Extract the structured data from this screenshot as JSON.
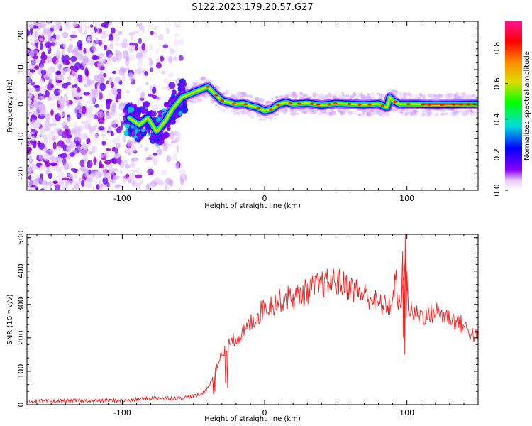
{
  "title": "S122.2023.179.20.57.G27",
  "chart_data": [
    {
      "type": "heatmap",
      "xlabel": "Height of straight line (km)",
      "ylabel": "Frequency (Hz)",
      "xlim": [
        -167,
        150
      ],
      "ylim": [
        -25,
        24
      ],
      "xticks": [
        -100,
        0,
        100
      ],
      "yticks": [
        -20,
        -10,
        0,
        10,
        20
      ],
      "colorbar": {
        "label": "Normalized spectral amplitude",
        "range": [
          0.0,
          0.95
        ],
        "ticks": [
          0.0,
          0.2,
          0.4,
          0.6,
          0.8
        ],
        "colors": [
          "#ffffff",
          "#e8c8ff",
          "#8800ff",
          "#0000ff",
          "#00dddd",
          "#00ff00",
          "#dddd00",
          "#ff8800",
          "#ff0000",
          "#ff1493"
        ]
      },
      "ridge_trace": {
        "x": [
          -95,
          -88,
          -82,
          -76,
          -70,
          -64,
          -58,
          -52,
          -46,
          -40,
          -35,
          -30,
          -25,
          -20,
          -15,
          -10,
          -5,
          0,
          5,
          10,
          15,
          20,
          30,
          40,
          50,
          60,
          70,
          80,
          86,
          88,
          90,
          95,
          105,
          120,
          135,
          150
        ],
        "y": [
          -4,
          -6,
          -4,
          -8,
          -5,
          -1,
          2,
          3,
          4,
          5,
          3,
          1,
          0.5,
          0,
          0.2,
          -0.5,
          -1,
          -2,
          -1.5,
          0,
          0.5,
          0,
          0.3,
          -0.3,
          0.2,
          0,
          -0.2,
          0.1,
          -1,
          2,
          1,
          0,
          0,
          -0.2,
          -0.1,
          0
        ]
      }
    },
    {
      "type": "line",
      "xlabel": "Height of straight line (km)",
      "ylabel": "SNR (10 * v/v)",
      "xlim": [
        -167,
        150
      ],
      "ylim": [
        0,
        510
      ],
      "xticks": [
        -100,
        0,
        100
      ],
      "yticks": [
        0,
        100,
        200,
        300,
        400,
        500
      ],
      "series": [
        {
          "color": "#ee2222",
          "x": [
            -167,
            -150,
            -130,
            -110,
            -95,
            -80,
            -70,
            -60,
            -50,
            -45,
            -40,
            -35,
            -30,
            -25,
            -20,
            -15,
            -10,
            -5,
            0,
            5,
            10,
            15,
            20,
            25,
            30,
            35,
            40,
            45,
            50,
            55,
            60,
            65,
            70,
            75,
            80,
            85,
            90,
            92,
            95,
            97,
            99,
            100,
            102,
            105,
            110,
            115,
            120,
            125,
            130,
            135,
            140,
            145,
            150
          ],
          "y": [
            10,
            10,
            12,
            12,
            13,
            20,
            20,
            20,
            25,
            30,
            50,
            100,
            150,
            180,
            200,
            215,
            245,
            265,
            295,
            300,
            310,
            320,
            320,
            330,
            340,
            350,
            360,
            365,
            370,
            360,
            350,
            340,
            330,
            320,
            300,
            295,
            300,
            380,
            280,
            330,
            490,
            330,
            280,
            270,
            270,
            265,
            280,
            270,
            260,
            250,
            235,
            215,
            200
          ]
        }
      ]
    }
  ]
}
